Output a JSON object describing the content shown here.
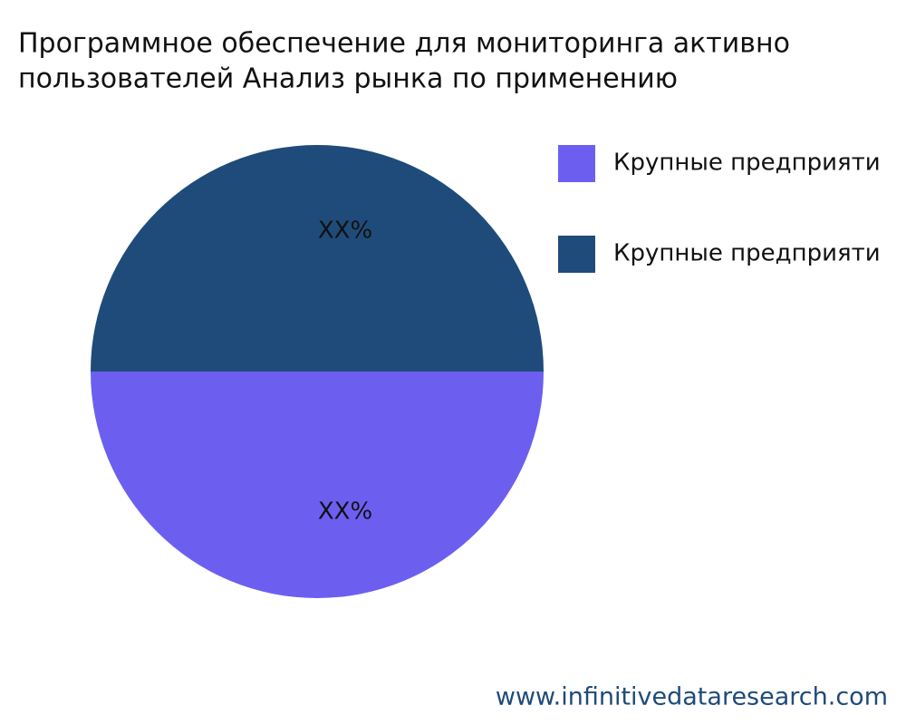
{
  "chart_data": {
    "type": "pie",
    "title": [
      "Программное обеспечение для мониторинга активно",
      "пользователей Анализ рынка по применению"
    ],
    "categories": [
      "Крупные предприяти",
      "Крупные предприяти"
    ],
    "values": [
      50,
      50
    ],
    "value_labels": [
      "XX%",
      "XX%"
    ],
    "colors": [
      "#6c5ff0",
      "#1f4b7a"
    ],
    "legend": "top-right",
    "watermark": "www.infinitivedataresearch.com"
  }
}
